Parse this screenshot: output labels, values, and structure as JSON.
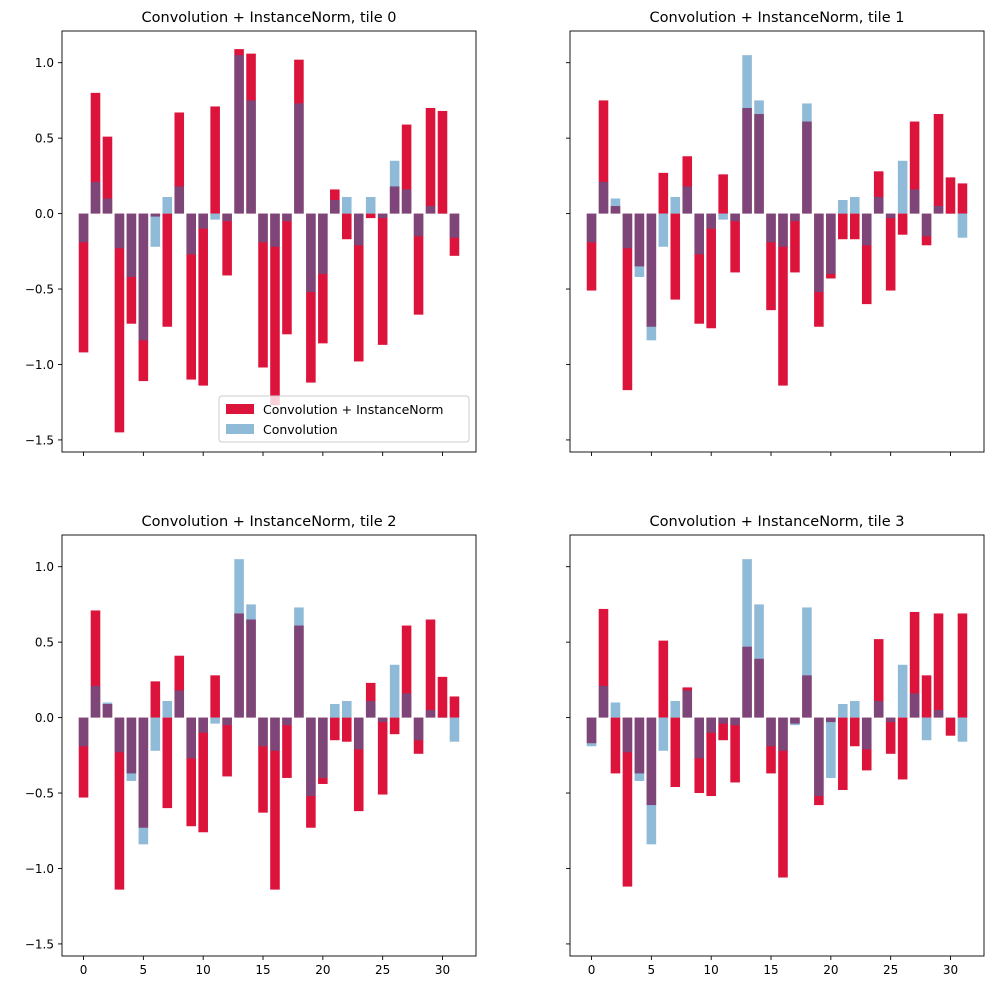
{
  "figure": {
    "colors": {
      "norm": "#dc143c",
      "conv": "#1f77b4",
      "conv_alpha": 0.5
    },
    "shared": {
      "x_ticks": [
        0,
        5,
        10,
        15,
        20,
        25,
        30
      ],
      "y_ticks": [
        -1.5,
        -1.0,
        -0.5,
        0.0,
        0.5,
        1.0
      ],
      "y_tick_labels": [
        "−1.5",
        "−1.0",
        "−0.5",
        "0.0",
        "0.5",
        "1.0"
      ],
      "xlim": [
        -1.8,
        32.8
      ],
      "ylim": [
        -1.58,
        1.21
      ]
    }
  },
  "chart_data": [
    {
      "type": "bar",
      "title": "Convolution + InstanceNorm, tile 0",
      "legend": {
        "position": "lower-right",
        "entries": [
          "Convolution + InstanceNorm",
          "Convolution"
        ]
      },
      "x": [
        0,
        1,
        2,
        3,
        4,
        5,
        6,
        7,
        8,
        9,
        10,
        11,
        12,
        13,
        14,
        15,
        16,
        17,
        18,
        19,
        20,
        21,
        22,
        23,
        24,
        25,
        26,
        27,
        28,
        29,
        30,
        31
      ],
      "series": [
        {
          "name": "Convolution + InstanceNorm",
          "values": [
            -0.92,
            0.8,
            0.51,
            -1.45,
            -0.73,
            -1.11,
            -0.02,
            -0.75,
            0.67,
            -1.1,
            -1.14,
            0.71,
            -0.41,
            1.09,
            1.06,
            -1.02,
            -1.27,
            -0.8,
            1.02,
            -1.12,
            -0.86,
            0.16,
            -0.17,
            -0.98,
            -0.03,
            -0.87,
            0.18,
            0.59,
            -0.67,
            0.7,
            0.68,
            -0.28
          ]
        },
        {
          "name": "Convolution",
          "values": [
            -0.19,
            0.21,
            0.1,
            -0.23,
            -0.42,
            -0.84,
            -0.22,
            0.11,
            0.18,
            -0.27,
            -0.1,
            -0.04,
            -0.05,
            1.05,
            0.75,
            -0.19,
            -0.22,
            -0.05,
            0.73,
            -0.52,
            -0.4,
            0.09,
            0.11,
            -0.21,
            0.11,
            -0.03,
            0.35,
            0.16,
            -0.15,
            0.05,
            0.0,
            -0.16
          ]
        }
      ]
    },
    {
      "type": "bar",
      "title": "Convolution + InstanceNorm, tile 1",
      "x": [
        0,
        1,
        2,
        3,
        4,
        5,
        6,
        7,
        8,
        9,
        10,
        11,
        12,
        13,
        14,
        15,
        16,
        17,
        18,
        19,
        20,
        21,
        22,
        23,
        24,
        25,
        26,
        27,
        28,
        29,
        30,
        31
      ],
      "series": [
        {
          "name": "Convolution + InstanceNorm",
          "values": [
            -0.51,
            0.75,
            0.05,
            -1.17,
            -0.35,
            -0.75,
            0.27,
            -0.57,
            0.38,
            -0.73,
            -0.76,
            0.26,
            -0.39,
            0.7,
            0.66,
            -0.64,
            -1.14,
            -0.39,
            0.61,
            -0.75,
            -0.43,
            -0.17,
            -0.17,
            -0.6,
            0.28,
            -0.51,
            -0.14,
            0.61,
            -0.21,
            0.66,
            0.24,
            0.2
          ]
        },
        {
          "name": "Convolution",
          "values": [
            -0.19,
            0.21,
            0.1,
            -0.23,
            -0.42,
            -0.84,
            -0.22,
            0.11,
            0.18,
            -0.27,
            -0.1,
            -0.04,
            -0.05,
            1.05,
            0.75,
            -0.19,
            -0.22,
            -0.05,
            0.73,
            -0.52,
            -0.4,
            0.09,
            0.11,
            -0.21,
            0.11,
            -0.03,
            0.35,
            0.16,
            -0.15,
            0.05,
            0.0,
            -0.16
          ]
        }
      ]
    },
    {
      "type": "bar",
      "title": "Convolution + InstanceNorm, tile 2",
      "x": [
        0,
        1,
        2,
        3,
        4,
        5,
        6,
        7,
        8,
        9,
        10,
        11,
        12,
        13,
        14,
        15,
        16,
        17,
        18,
        19,
        20,
        21,
        22,
        23,
        24,
        25,
        26,
        27,
        28,
        29,
        30,
        31
      ],
      "series": [
        {
          "name": "Convolution + InstanceNorm",
          "values": [
            -0.53,
            0.71,
            0.09,
            -1.14,
            -0.37,
            -0.73,
            0.24,
            -0.6,
            0.41,
            -0.72,
            -0.76,
            0.28,
            -0.39,
            0.69,
            0.65,
            -0.63,
            -1.14,
            -0.4,
            0.61,
            -0.73,
            -0.44,
            -0.15,
            -0.16,
            -0.62,
            0.23,
            -0.51,
            -0.11,
            0.61,
            -0.24,
            0.65,
            0.27,
            0.14
          ]
        },
        {
          "name": "Convolution",
          "values": [
            -0.19,
            0.21,
            0.1,
            -0.23,
            -0.42,
            -0.84,
            -0.22,
            0.11,
            0.18,
            -0.27,
            -0.1,
            -0.04,
            -0.05,
            1.05,
            0.75,
            -0.19,
            -0.22,
            -0.05,
            0.73,
            -0.52,
            -0.4,
            0.09,
            0.11,
            -0.21,
            0.11,
            -0.03,
            0.35,
            0.16,
            -0.15,
            0.05,
            0.0,
            -0.16
          ]
        }
      ]
    },
    {
      "type": "bar",
      "title": "Convolution + InstanceNorm, tile 3",
      "x": [
        0,
        1,
        2,
        3,
        4,
        5,
        6,
        7,
        8,
        9,
        10,
        11,
        12,
        13,
        14,
        15,
        16,
        17,
        18,
        19,
        20,
        21,
        22,
        23,
        24,
        25,
        26,
        27,
        28,
        29,
        30,
        31
      ],
      "series": [
        {
          "name": "Convolution + InstanceNorm",
          "values": [
            -0.17,
            0.72,
            -0.37,
            -1.12,
            -0.37,
            -0.58,
            0.51,
            -0.46,
            0.2,
            -0.5,
            -0.52,
            -0.15,
            -0.43,
            0.47,
            0.39,
            -0.37,
            -1.06,
            -0.04,
            0.28,
            -0.58,
            -0.03,
            -0.48,
            -0.19,
            -0.35,
            0.52,
            -0.24,
            -0.41,
            0.7,
            0.28,
            0.69,
            -0.12,
            0.69
          ]
        },
        {
          "name": "Convolution",
          "values": [
            -0.19,
            0.21,
            0.1,
            -0.23,
            -0.42,
            -0.84,
            -0.22,
            0.11,
            0.18,
            -0.27,
            -0.1,
            -0.04,
            -0.05,
            1.05,
            0.75,
            -0.19,
            -0.22,
            -0.05,
            0.73,
            -0.52,
            -0.4,
            0.09,
            0.11,
            -0.21,
            0.11,
            -0.03,
            0.35,
            0.16,
            -0.15,
            0.05,
            0.0,
            -0.16
          ]
        }
      ]
    }
  ]
}
